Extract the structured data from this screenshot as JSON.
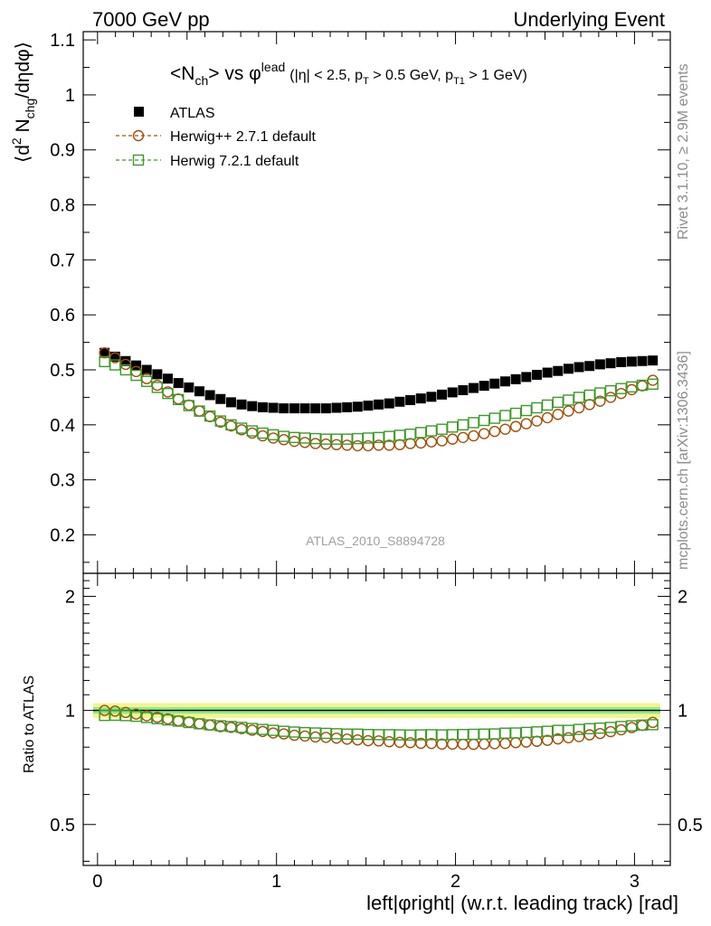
{
  "header": {
    "left": "7000 GeV pp",
    "right": "Underlying Event"
  },
  "side": {
    "rivet": "Rivet 3.1.10, ≥ 2.9M events",
    "mcplots": "mcplots.cern.ch [arXiv:1306.3436]"
  },
  "title": {
    "main": "<N",
    "main_sub": "ch",
    "vs": "> vs φ",
    "vs_sup": "lead",
    "cuts_a": "(|η| < 2.5, p",
    "cuts_a_sub": "T",
    "cuts_b": " > 0.5 GeV, p",
    "cuts_b_sub": "T1",
    "cuts_c": " > 1 GeV)"
  },
  "watermark": "ATLAS_2010_S8894728",
  "colors": {
    "atlas": "#000000",
    "herwigpp": "#a0500a",
    "herwig7": "#3c9a28",
    "band_outer": "#f5f58c",
    "band_inner": "#90e890"
  },
  "chart_data": [
    {
      "type": "scatter",
      "panel": "main",
      "ylabel": "⟨d² N_chg/dηdφ⟩",
      "ylabel_parts": {
        "open": "⟨d",
        "sup": "2",
        "n": " N",
        "sub": "chg",
        "rest": "/dηdφ⟩"
      },
      "xlim": [
        -0.08,
        3.2
      ],
      "ylim": [
        0.13,
        1.115
      ],
      "yticks": [
        "0.2",
        "0.3",
        "0.4",
        "0.5",
        "0.6",
        "0.7",
        "0.8",
        "0.9",
        "1",
        "1.1"
      ],
      "ytick_values": [
        0.2,
        0.3,
        0.4,
        0.5,
        0.6,
        0.7,
        0.8,
        0.9,
        1.0,
        1.1
      ],
      "legend_position": "top-left",
      "x": [
        0.0393,
        0.0982,
        0.1571,
        0.216,
        0.2749,
        0.3338,
        0.3927,
        0.4516,
        0.5105,
        0.5694,
        0.6283,
        0.6872,
        0.7461,
        0.805,
        0.8639,
        0.9228,
        0.9817,
        1.0406,
        1.0996,
        1.1585,
        1.2174,
        1.2763,
        1.3352,
        1.3941,
        1.453,
        1.5119,
        1.5708,
        1.6297,
        1.6886,
        1.7475,
        1.8064,
        1.8653,
        1.9242,
        1.9831,
        2.042,
        2.1009,
        2.1598,
        2.2187,
        2.2777,
        2.3366,
        2.3955,
        2.4544,
        2.5133,
        2.5722,
        2.6311,
        2.69,
        2.7489,
        2.8078,
        2.8667,
        2.9256,
        2.9845,
        3.0434,
        3.1023
      ],
      "series": [
        {
          "name": "ATLAS",
          "marker": "filled-square",
          "values": [
            0.531,
            0.524,
            0.516,
            0.508,
            0.5,
            0.492,
            0.484,
            0.476,
            0.468,
            0.461,
            0.454,
            0.447,
            0.441,
            0.437,
            0.434,
            0.432,
            0.431,
            0.43,
            0.43,
            0.43,
            0.43,
            0.43,
            0.431,
            0.432,
            0.433,
            0.435,
            0.437,
            0.439,
            0.442,
            0.445,
            0.448,
            0.451,
            0.455,
            0.459,
            0.463,
            0.467,
            0.471,
            0.475,
            0.479,
            0.483,
            0.487,
            0.491,
            0.495,
            0.498,
            0.502,
            0.505,
            0.507,
            0.51,
            0.512,
            0.514,
            0.515,
            0.516,
            0.517
          ]
        },
        {
          "name": "Herwig++ 2.7.1 default",
          "marker": "open-circle",
          "values": [
            0.531,
            0.522,
            0.51,
            0.497,
            0.484,
            0.472,
            0.46,
            0.447,
            0.436,
            0.425,
            0.415,
            0.405,
            0.398,
            0.391,
            0.385,
            0.38,
            0.376,
            0.373,
            0.37,
            0.368,
            0.366,
            0.365,
            0.364,
            0.363,
            0.362,
            0.362,
            0.363,
            0.363,
            0.364,
            0.366,
            0.367,
            0.369,
            0.371,
            0.374,
            0.377,
            0.38,
            0.384,
            0.388,
            0.392,
            0.397,
            0.402,
            0.407,
            0.413,
            0.419,
            0.425,
            0.431,
            0.437,
            0.443,
            0.45,
            0.457,
            0.464,
            0.471,
            0.481
          ]
        },
        {
          "name": "Herwig 7.2.1 default",
          "marker": "open-square",
          "values": [
            0.515,
            0.509,
            0.5,
            0.49,
            0.479,
            0.468,
            0.457,
            0.446,
            0.435,
            0.425,
            0.416,
            0.407,
            0.4,
            0.394,
            0.389,
            0.385,
            0.382,
            0.379,
            0.377,
            0.376,
            0.375,
            0.374,
            0.374,
            0.374,
            0.375,
            0.376,
            0.377,
            0.379,
            0.381,
            0.383,
            0.386,
            0.389,
            0.392,
            0.396,
            0.4,
            0.404,
            0.408,
            0.412,
            0.417,
            0.421,
            0.426,
            0.431,
            0.436,
            0.441,
            0.445,
            0.45,
            0.454,
            0.458,
            0.462,
            0.466,
            0.469,
            0.472,
            0.474
          ]
        }
      ]
    },
    {
      "type": "scatter",
      "panel": "ratio",
      "ylabel": "Ratio to ATLAS",
      "xlabel": "left|φright| (w.r.t. leading track) [rad]",
      "xlim": [
        -0.08,
        3.2
      ],
      "ylim": [
        0.39,
        2.3
      ],
      "log_y": true,
      "xticks": [
        "0",
        "1",
        "2",
        "3"
      ],
      "xtick_values": [
        0,
        1,
        2,
        3
      ],
      "yticks": [
        "0.5",
        "1",
        "2"
      ],
      "ytick_values": [
        0.5,
        1,
        2
      ],
      "band_outer": [
        0.955,
        1.045
      ],
      "band_inner": [
        0.98,
        1.02
      ],
      "x": [
        0.0393,
        0.0982,
        0.1571,
        0.216,
        0.2749,
        0.3338,
        0.3927,
        0.4516,
        0.5105,
        0.5694,
        0.6283,
        0.6872,
        0.7461,
        0.805,
        0.8639,
        0.9228,
        0.9817,
        1.0406,
        1.0996,
        1.1585,
        1.2174,
        1.2763,
        1.3352,
        1.3941,
        1.453,
        1.5119,
        1.5708,
        1.6297,
        1.6886,
        1.7475,
        1.8064,
        1.8653,
        1.9242,
        1.9831,
        2.042,
        2.1009,
        2.1598,
        2.2187,
        2.2777,
        2.3366,
        2.3955,
        2.4544,
        2.5133,
        2.5722,
        2.6311,
        2.69,
        2.7489,
        2.8078,
        2.8667,
        2.9256,
        2.9845,
        3.0434,
        3.1023
      ],
      "series": [
        {
          "name": "Herwig++ 2.7.1 default",
          "marker": "open-circle",
          "values": [
            1.0,
            0.996,
            0.988,
            0.978,
            0.968,
            0.959,
            0.95,
            0.939,
            0.932,
            0.922,
            0.914,
            0.906,
            0.902,
            0.895,
            0.887,
            0.88,
            0.872,
            0.867,
            0.86,
            0.856,
            0.851,
            0.849,
            0.845,
            0.84,
            0.836,
            0.832,
            0.831,
            0.827,
            0.824,
            0.822,
            0.819,
            0.818,
            0.815,
            0.815,
            0.814,
            0.814,
            0.815,
            0.817,
            0.818,
            0.822,
            0.825,
            0.829,
            0.834,
            0.841,
            0.847,
            0.853,
            0.862,
            0.869,
            0.879,
            0.889,
            0.901,
            0.913,
            0.93
          ]
        },
        {
          "name": "Herwig 7.2.1 default",
          "marker": "open-square",
          "values": [
            0.97,
            0.971,
            0.969,
            0.965,
            0.958,
            0.951,
            0.944,
            0.937,
            0.929,
            0.922,
            0.916,
            0.911,
            0.907,
            0.902,
            0.896,
            0.891,
            0.886,
            0.881,
            0.877,
            0.874,
            0.872,
            0.87,
            0.868,
            0.866,
            0.866,
            0.864,
            0.863,
            0.863,
            0.862,
            0.861,
            0.862,
            0.863,
            0.862,
            0.863,
            0.864,
            0.865,
            0.866,
            0.867,
            0.871,
            0.872,
            0.875,
            0.878,
            0.881,
            0.886,
            0.886,
            0.891,
            0.895,
            0.898,
            0.902,
            0.907,
            0.911,
            0.915,
            0.917
          ]
        }
      ]
    }
  ]
}
